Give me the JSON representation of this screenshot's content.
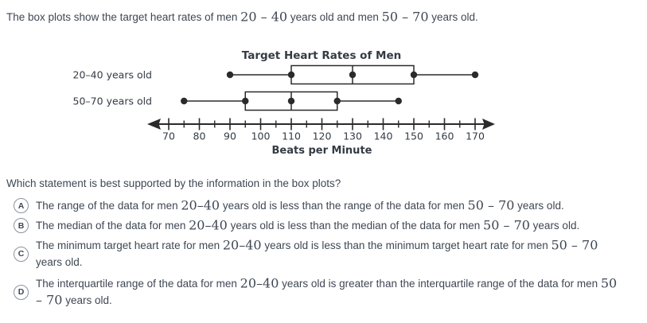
{
  "page": {
    "background": "#ffffff",
    "text_color": "#3e4753",
    "figure_ink_color": "#2b2b2b"
  },
  "intro": "The box plots show the target heart rates of men 20 – 40 years old and men 50 – 70 years old.",
  "question": "Which statement is best supported by the information in the box plots?",
  "options": [
    {
      "letter": "A",
      "text": "The range of the data for men 20–40 years old is less than the range of the data for men 50 – 70 years old."
    },
    {
      "letter": "B",
      "text": "The median of the data for men 20–40 years old is less than the median of the data for men 50 – 70 years old."
    },
    {
      "letter": "C",
      "text": "The minimum target heart rate for men 20–40 years old is less than the minimum target heart rate for men 50 – 70 years old."
    },
    {
      "letter": "D",
      "text": "The interquartile range of the data for men 20–40 years old is greater than the interquartile range of the data for men 50 – 70 years old."
    }
  ],
  "chart_data": {
    "type": "boxplot",
    "title": "Target Heart Rates of Men",
    "xlabel": "Beats per Minute",
    "orientation": "horizontal",
    "axis": {
      "min": 70,
      "max": 170,
      "ticks": [
        70,
        80,
        90,
        100,
        110,
        120,
        130,
        140,
        150,
        160,
        170
      ],
      "minor_tick_step": 5,
      "arrows_both_ends": true
    },
    "series": [
      {
        "name": "20–40 years old",
        "min": 90,
        "q1": 110,
        "median": 130,
        "q3": 150,
        "max": 170
      },
      {
        "name": "50–70 years old",
        "min": 75,
        "q1": 95,
        "median": 110,
        "q3": 125,
        "max": 145
      }
    ]
  }
}
